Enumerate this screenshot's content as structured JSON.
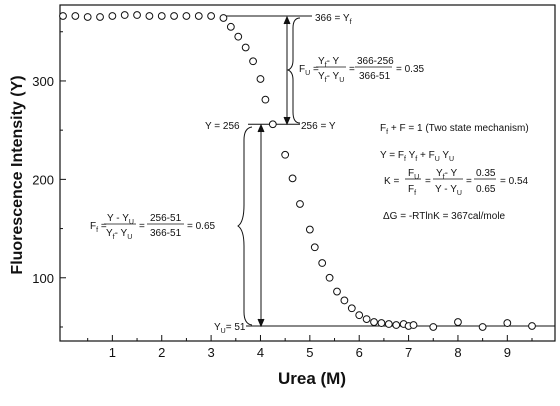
{
  "chart_data": {
    "type": "scatter",
    "xlabel": "Urea (M)",
    "ylabel": "Fluorescence Intensity (Y)",
    "xlim": [
      0,
      10
    ],
    "ylim": [
      45,
      370
    ],
    "x_ticks": [
      1,
      2,
      3,
      4,
      5,
      6,
      7,
      8,
      9
    ],
    "y_ticks": [
      100,
      200,
      300
    ],
    "grid": false,
    "series": [
      {
        "marker": "open-circle",
        "points": [
          [
            0.0,
            366
          ],
          [
            0.25,
            366
          ],
          [
            0.5,
            365
          ],
          [
            0.75,
            365
          ],
          [
            1.0,
            366
          ],
          [
            1.25,
            367
          ],
          [
            1.5,
            367
          ],
          [
            1.75,
            366
          ],
          [
            2.0,
            366
          ],
          [
            2.25,
            366
          ],
          [
            2.5,
            366
          ],
          [
            2.75,
            366
          ],
          [
            3.0,
            366
          ],
          [
            3.25,
            364
          ],
          [
            3.4,
            355
          ],
          [
            3.55,
            345
          ],
          [
            3.7,
            334
          ],
          [
            3.85,
            320
          ],
          [
            4.0,
            302
          ],
          [
            4.1,
            281
          ],
          [
            4.25,
            256
          ],
          [
            4.5,
            225
          ],
          [
            4.65,
            201
          ],
          [
            4.8,
            175
          ],
          [
            5.0,
            149
          ],
          [
            5.1,
            131
          ],
          [
            5.25,
            115
          ],
          [
            5.4,
            100
          ],
          [
            5.55,
            86
          ],
          [
            5.7,
            77
          ],
          [
            5.85,
            69
          ],
          [
            6.0,
            62
          ],
          [
            6.15,
            58
          ],
          [
            6.3,
            55
          ],
          [
            6.45,
            54
          ],
          [
            6.6,
            53
          ],
          [
            6.75,
            52
          ],
          [
            6.9,
            53
          ],
          [
            7.0,
            51
          ],
          [
            7.1,
            52
          ],
          [
            7.5,
            50
          ],
          [
            8.0,
            55
          ],
          [
            8.5,
            50
          ],
          [
            9.0,
            54
          ],
          [
            9.5,
            51
          ]
        ]
      }
    ],
    "reference_lines": {
      "y_folded": 366,
      "y_mid": 256,
      "y_unfolded": 51
    },
    "annotations": {
      "folded_label": "366 = Y",
      "folded_sub": "f",
      "mid_left_label": "Y = 256",
      "mid_right_label": "256 = Y",
      "unfolded_label": "Y",
      "unfolded_sub": "U",
      "unfolded_value": "= 51",
      "fu_lhs": "F",
      "fu_lhs_sub": "U",
      "fu_num_sym": "Y",
      "fu_num_sym_sub": "f",
      "fu_num_sym2": "- Y",
      "fu_den_sym": "Y",
      "fu_den_sym_sub": "f",
      "fu_den_sym2": "- Y",
      "fu_den_sym2_sub": "U",
      "fu_num_val": "366-256",
      "fu_den_val": "366-51",
      "fu_result": "= 0.35",
      "ff_lhs": "F",
      "ff_lhs_sub": "f",
      "ff_num_sym": "Y - Y",
      "ff_num_sym_sub": "U",
      "ff_den_sym": "Y",
      "ff_den_sym_sub": "f",
      "ff_den_sym2": "- Y",
      "ff_den_sym2_sub": "U",
      "ff_num_val": "256-51",
      "ff_den_val": "366-51",
      "ff_result": "= 0.65",
      "eq1_a": "F",
      "eq1_a_sub": "f",
      "eq1_b": "+ F",
      "eq1_c": "= 1 (Two state mechanism)",
      "eq2_a": "Y = F",
      "eq2_a_sub": "f",
      "eq2_b": "Y",
      "eq2_b_sub": "f",
      "eq2_c": "+ F",
      "eq2_c_sub": "U",
      "eq2_d": "Y",
      "eq2_d_sub": "U",
      "k_lhs": "K =",
      "k_f1_num": "F",
      "k_f1_num_sub": "U",
      "k_f1_den": "F",
      "k_f1_den_sub": "f",
      "k_f2_num": "Y",
      "k_f2_num_sub": "f",
      "k_f2_num2": "- Y",
      "k_f2_den": "Y - Y",
      "k_f2_den_sub": "U",
      "k_f3_num": "0.35",
      "k_f3_den": "0.65",
      "k_result": "= 0.54",
      "dg": "ΔG = -RTlnK = 367cal/mole"
    }
  }
}
